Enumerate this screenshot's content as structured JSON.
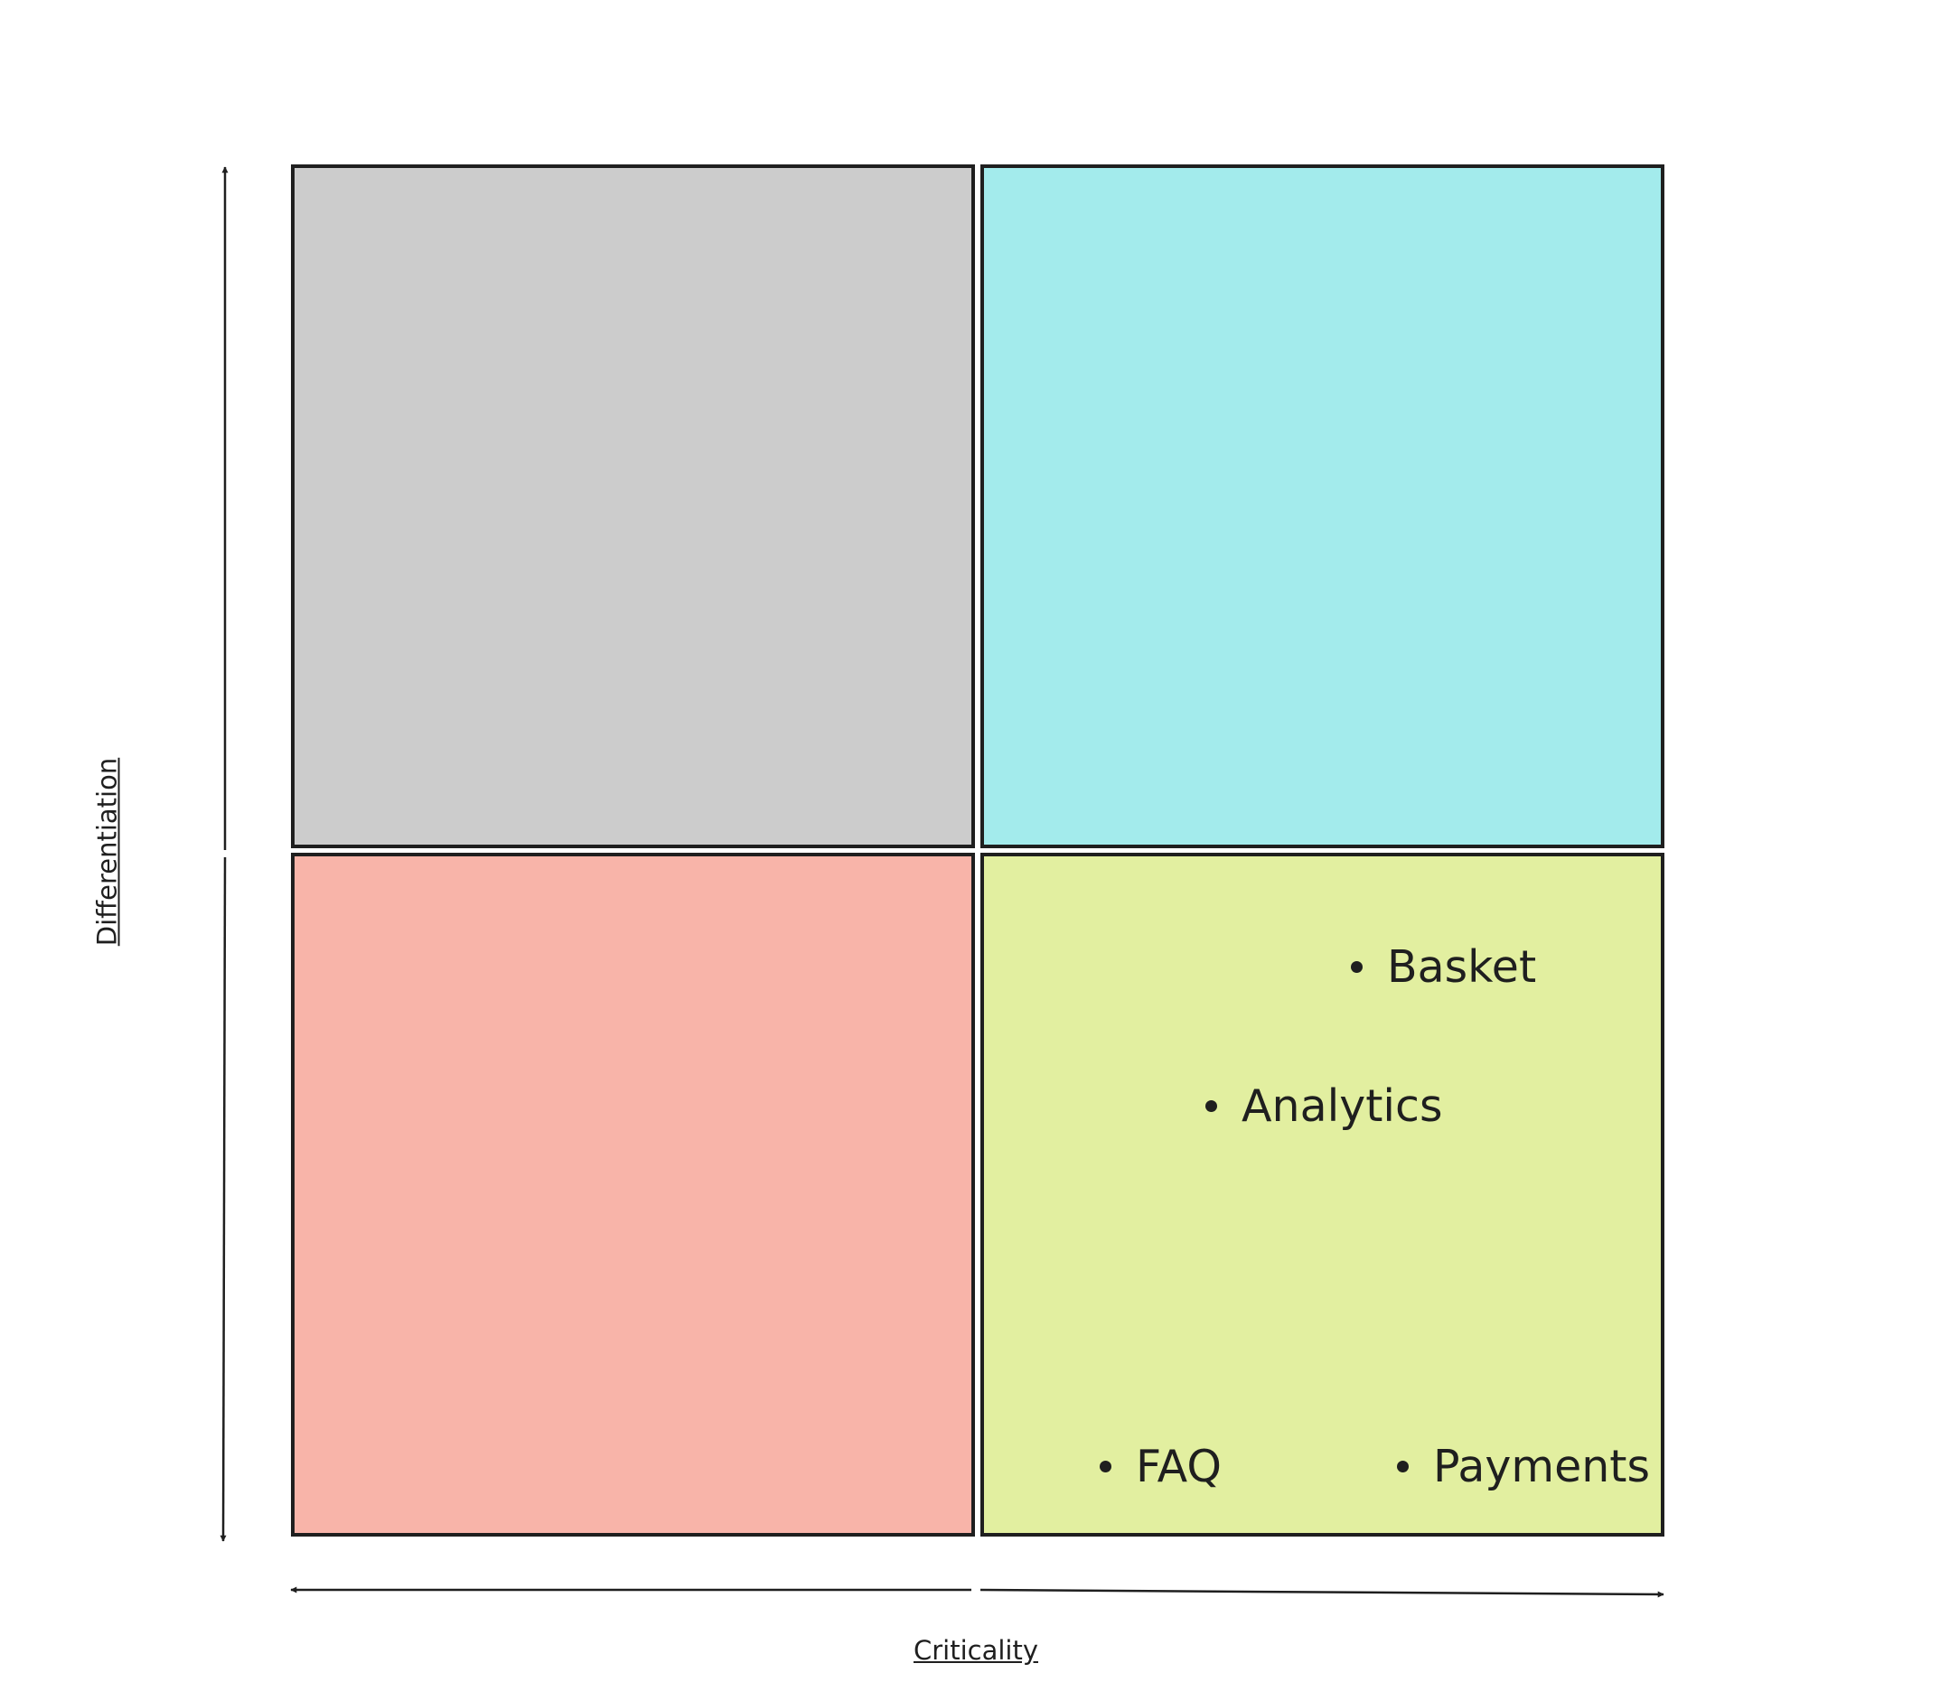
{
  "diagram": {
    "type": "quadrant-matrix",
    "axes": {
      "x": {
        "label": "Criticality"
      },
      "y": {
        "label": "Differentiation"
      }
    },
    "quadrants": [
      {
        "id": "top-left",
        "color": "#cccccc",
        "items": []
      },
      {
        "id": "top-right",
        "color": "#a3ebec",
        "items": []
      },
      {
        "id": "bottom-left",
        "color": "#f8b4a9",
        "items": []
      },
      {
        "id": "bottom-right",
        "color": "#e2efa0",
        "items": [
          "Basket",
          "Analytics",
          "FAQ",
          "Payments"
        ]
      }
    ],
    "items": {
      "basket": "Basket",
      "analytics": "Analytics",
      "faq": "FAQ",
      "payments": "Payments"
    }
  }
}
